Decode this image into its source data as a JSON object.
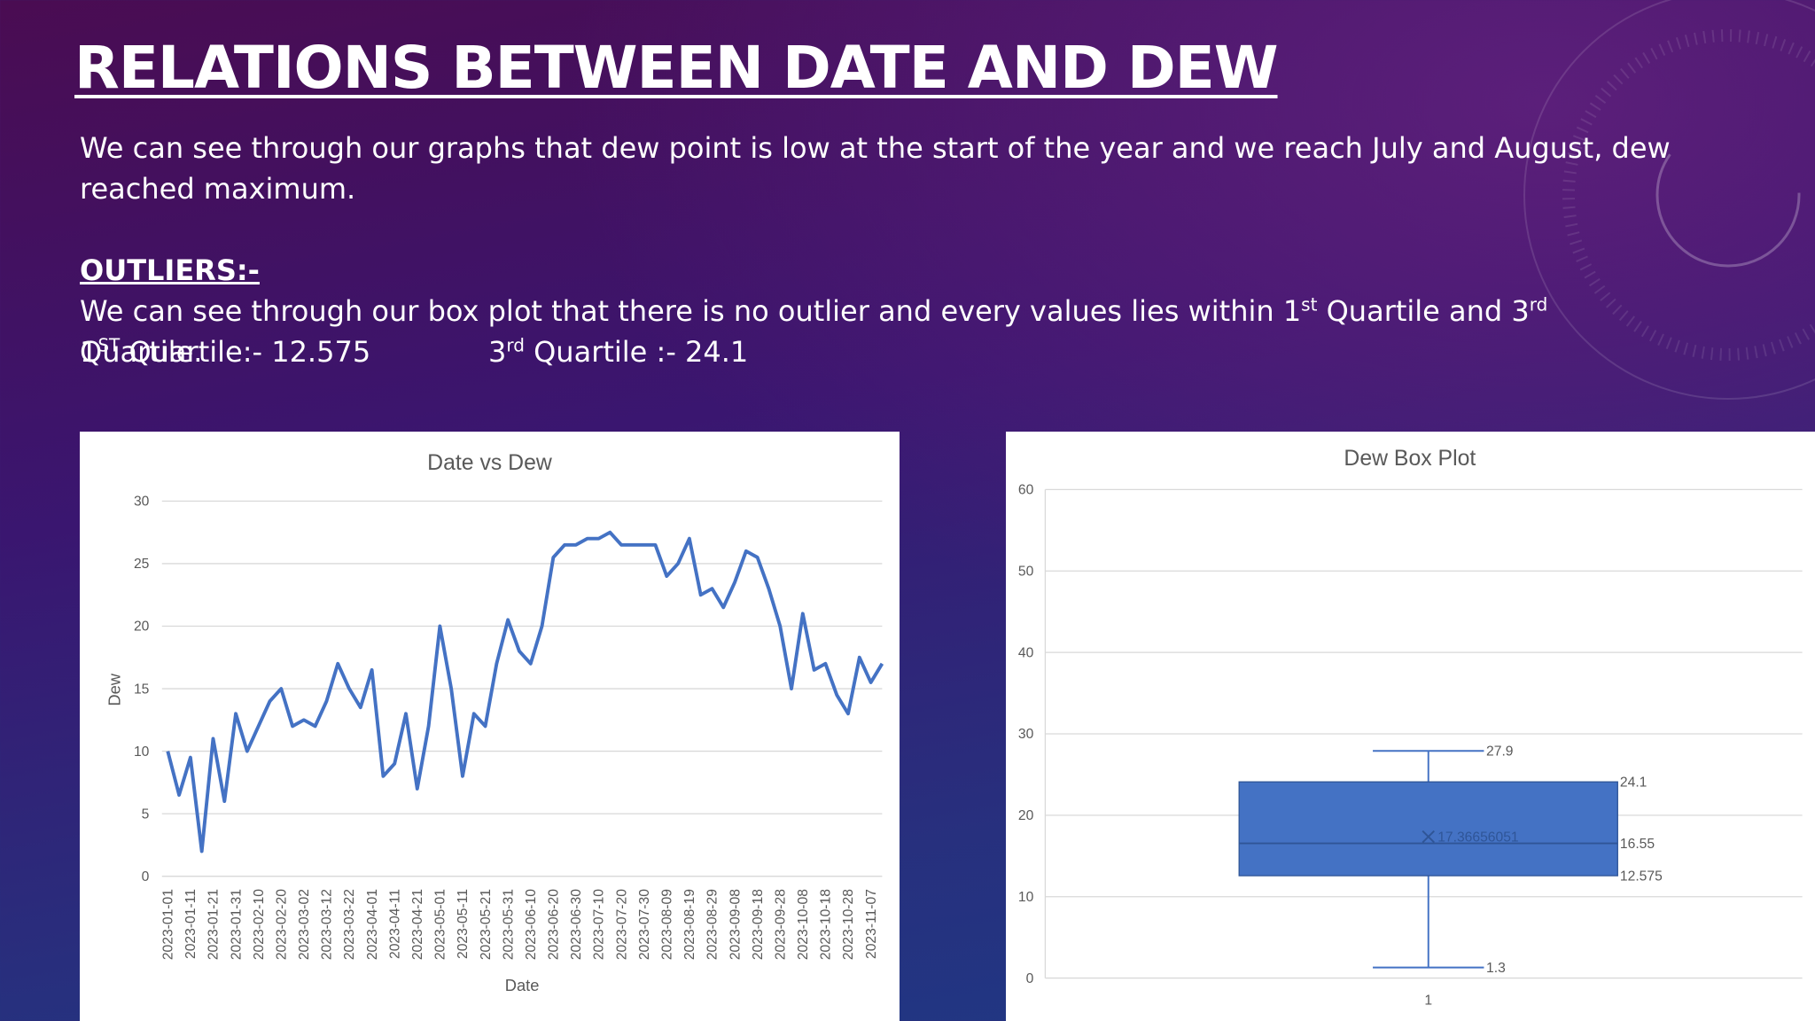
{
  "header": {
    "title": "RELATIONS BETWEEN DATE AND DEW"
  },
  "body": {
    "paragraph": "We can see through our graphs that dew point is low at the start of the year and we reach July and August, dew reached maximum.",
    "outliers_heading": "OUTLIERS:-",
    "outliers_text": [
      "We can see through our box plot that there is no outlier and every values lies within 1",
      "st",
      " Quartile and 3",
      "rd",
      " Quartile."
    ],
    "q1_text": [
      "1",
      "ST",
      " Quartile:- 12.575"
    ],
    "q3_text": [
      "3",
      "rd",
      " Quartile :- 24.1"
    ]
  },
  "chart_data": [
    {
      "type": "line",
      "title": "Date vs Dew",
      "x_label": "Date",
      "y_label": "Dew",
      "color": "#4472c4",
      "grid": true,
      "xlim": [
        "2023-01-01",
        "2023-11-12"
      ],
      "ylim": [
        0,
        30
      ],
      "yticks": [
        0,
        5,
        10,
        15,
        20,
        25,
        30
      ],
      "xticks": [
        "2023-01-01",
        "2023-01-11",
        "2023-01-21",
        "2023-01-31",
        "2023-02-10",
        "2023-02-20",
        "2023-03-02",
        "2023-03-12",
        "2023-03-22",
        "2023-04-01",
        "2023-04-11",
        "2023-04-21",
        "2023-05-01",
        "2023-05-11",
        "2023-05-21",
        "2023-05-31",
        "2023-06-10",
        "2023-06-20",
        "2023-06-30",
        "2023-07-10",
        "2023-07-20",
        "2023-07-30",
        "2023-08-09",
        "2023-08-19",
        "2023-08-29",
        "2023-09-08",
        "2023-09-18",
        "2023-09-28",
        "2023-10-08",
        "2023-10-18",
        "2023-10-28",
        "2023-11-07"
      ],
      "x": [
        "2023-01-01",
        "2023-01-06",
        "2023-01-11",
        "2023-01-16",
        "2023-01-21",
        "2023-01-26",
        "2023-01-31",
        "2023-02-05",
        "2023-02-10",
        "2023-02-15",
        "2023-02-20",
        "2023-02-25",
        "2023-03-02",
        "2023-03-07",
        "2023-03-12",
        "2023-03-17",
        "2023-03-22",
        "2023-03-27",
        "2023-04-01",
        "2023-04-06",
        "2023-04-11",
        "2023-04-16",
        "2023-04-21",
        "2023-04-26",
        "2023-05-01",
        "2023-05-06",
        "2023-05-11",
        "2023-05-16",
        "2023-05-21",
        "2023-05-26",
        "2023-05-31",
        "2023-06-05",
        "2023-06-10",
        "2023-06-15",
        "2023-06-20",
        "2023-06-25",
        "2023-06-30",
        "2023-07-05",
        "2023-07-10",
        "2023-07-15",
        "2023-07-20",
        "2023-07-25",
        "2023-07-30",
        "2023-08-04",
        "2023-08-09",
        "2023-08-14",
        "2023-08-19",
        "2023-08-24",
        "2023-08-29",
        "2023-09-03",
        "2023-09-08",
        "2023-09-13",
        "2023-09-18",
        "2023-09-23",
        "2023-09-28",
        "2023-10-03",
        "2023-10-08",
        "2023-10-13",
        "2023-10-18",
        "2023-10-23",
        "2023-10-28",
        "2023-11-02",
        "2023-11-07",
        "2023-11-12"
      ],
      "values": [
        10,
        6.5,
        9.5,
        2,
        11,
        6,
        13,
        10,
        12,
        14,
        15,
        12,
        12.5,
        12,
        14,
        17,
        15,
        13.5,
        16.5,
        8,
        9,
        13,
        7,
        12,
        20,
        15,
        8,
        13,
        12,
        17,
        20.5,
        18,
        17,
        20,
        25.5,
        26.5,
        26.5,
        27,
        27,
        27.5,
        26.5,
        26.5,
        26.5,
        26.5,
        24,
        25,
        27,
        22.5,
        23,
        21.5,
        23.5,
        26,
        25.5,
        23,
        20,
        15,
        21,
        16.5,
        17,
        14.5,
        13,
        17.5,
        15.5,
        17
      ]
    },
    {
      "type": "box",
      "title": "Dew Box Plot",
      "color": "#4472c4",
      "grid": true,
      "ylim": [
        0,
        60
      ],
      "yticks": [
        0,
        10,
        20,
        30,
        40,
        50,
        60
      ],
      "categories": [
        "1"
      ],
      "boxes": [
        {
          "min": 1.3,
          "q1": 12.575,
          "median": 16.55,
          "q3": 24.1,
          "max": 27.9,
          "mean": 17.36656051
        }
      ]
    }
  ]
}
